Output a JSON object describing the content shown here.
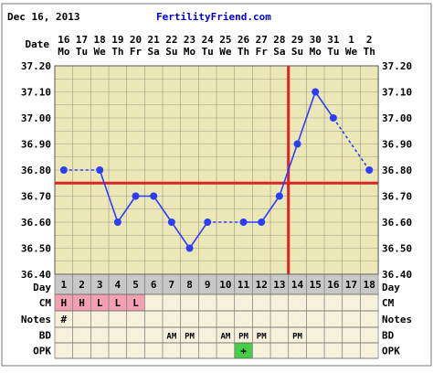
{
  "header": {
    "date": "Dec 16, 2013",
    "site": "FertilityFriend.com"
  },
  "row_labels": {
    "date": "Date",
    "day": "Day",
    "cm": "CM",
    "notes": "Notes",
    "bd": "BD",
    "opk": "OPK"
  },
  "colors": {
    "background": "#ffffff",
    "plot_fill": "#ece7b6",
    "grid": "#9b9b80",
    "line": "#2b3dff",
    "coverline": "#dd2222",
    "day_row_fill": "#c8c8c8",
    "cm_fill": "#f2a0b4",
    "table_fill": "#f7f1dc",
    "opk_positive": "#46cc46",
    "title_blue": "#0000cc"
  },
  "chart_data": {
    "type": "line",
    "title": "",
    "xlabel": "Day",
    "ylabel": "",
    "ylim": [
      36.4,
      37.2
    ],
    "y_ticks": [
      "36.40",
      "36.50",
      "36.60",
      "36.70",
      "36.80",
      "36.90",
      "37.00",
      "37.10",
      "37.20"
    ],
    "days": [
      "1",
      "2",
      "3",
      "4",
      "5",
      "6",
      "7",
      "8",
      "9",
      "10",
      "11",
      "12",
      "13",
      "14",
      "15",
      "16",
      "17",
      "18"
    ],
    "dates": [
      "16",
      "17",
      "18",
      "19",
      "20",
      "21",
      "22",
      "23",
      "24",
      "25",
      "26",
      "27",
      "28",
      "29",
      "30",
      "31",
      "1",
      "2"
    ],
    "weekdays": [
      "Mo",
      "Tu",
      "We",
      "Th",
      "Fr",
      "Sa",
      "Su",
      "Mo",
      "Tu",
      "We",
      "Th",
      "Fr",
      "Sa",
      "Su",
      "Mo",
      "Tu",
      "We",
      "Th"
    ],
    "series": [
      {
        "values": [
          36.8,
          null,
          36.8,
          36.6,
          36.7,
          36.7,
          36.6,
          36.5,
          36.6,
          null,
          36.6,
          36.6,
          36.7,
          36.9,
          37.1,
          37.0,
          null,
          36.8
        ],
        "dashed_segments": [
          [
            1,
            3
          ],
          [
            9,
            11
          ],
          [
            16,
            18
          ]
        ]
      }
    ],
    "coverline": 36.75,
    "ovulation_day": 13,
    "cm": [
      "H",
      "H",
      "L",
      "L",
      "L",
      "",
      "",
      "",
      "",
      "",
      "",
      "",
      "",
      "",
      "",
      "",
      "",
      ""
    ],
    "notes": [
      "#",
      "",
      "",
      "",
      "",
      "",
      "",
      "",
      "",
      "",
      "",
      "",
      "",
      "",
      "",
      "",
      "",
      ""
    ],
    "bd": [
      "",
      "",
      "",
      "",
      "",
      "",
      "AM",
      "PM",
      "",
      "AM",
      "PM",
      "PM",
      "",
      "PM",
      "",
      "",
      "",
      ""
    ],
    "opk": [
      "",
      "",
      "",
      "",
      "",
      "",
      "",
      "",
      "",
      "",
      "+",
      "",
      "",
      "",
      "",
      "",
      "",
      ""
    ]
  }
}
